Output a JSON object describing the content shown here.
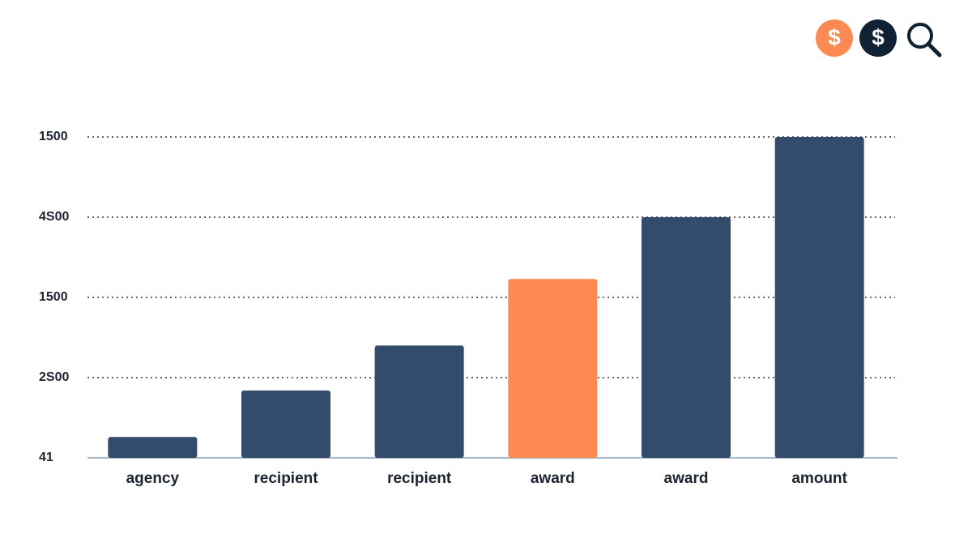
{
  "toolbar": {
    "icons": [
      "$",
      "$"
    ]
  },
  "chart_data": {
    "type": "bar",
    "categories": [
      "agency",
      "recipient",
      "recipient",
      "award",
      "award",
      "amount"
    ],
    "values": [
      0.26,
      0.84,
      1.4,
      2.23,
      3.0,
      4.0
    ],
    "colors": [
      "#344c6c",
      "#344c6c",
      "#344c6c",
      "#fd8a53",
      "#344c6c",
      "#344c6c"
    ],
    "ylim": [
      0,
      4
    ],
    "yticks": [
      {
        "value": 0,
        "label": "41"
      },
      {
        "value": 1,
        "label": "2S00"
      },
      {
        "value": 2,
        "label": "1500"
      },
      {
        "value": 3,
        "label": "4S00"
      },
      {
        "value": 4,
        "label": "1500"
      }
    ],
    "grid": true
  }
}
